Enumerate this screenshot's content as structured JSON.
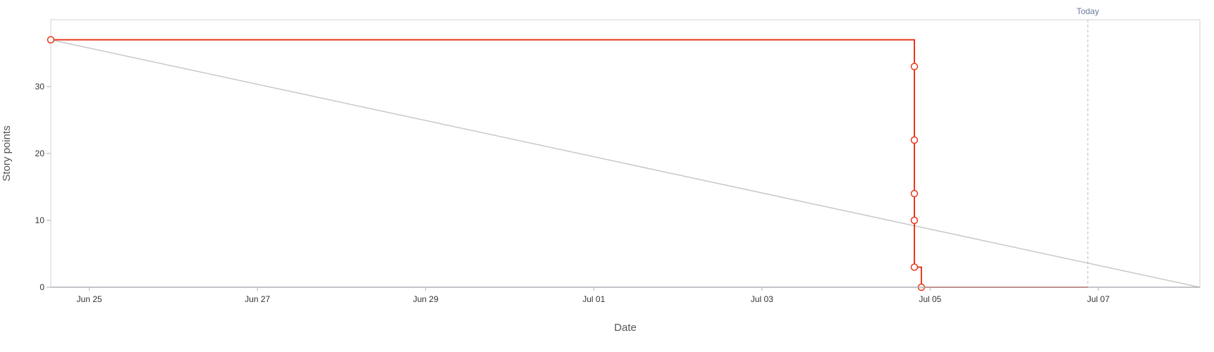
{
  "chart_data": {
    "type": "line",
    "xlabel": "Date",
    "ylabel": "Story points",
    "x_range": [
      "2024-06-24 13:00",
      "2024-07-08 05:00"
    ],
    "ylim": [
      0,
      40
    ],
    "y_ticks": [
      0,
      10,
      20,
      30
    ],
    "x_ticks": [
      {
        "label": "Jun 25",
        "date": "2024-06-25"
      },
      {
        "label": "Jun 27",
        "date": "2024-06-27"
      },
      {
        "label": "Jun 29",
        "date": "2024-06-29"
      },
      {
        "label": "Jul 01",
        "date": "2024-07-01"
      },
      {
        "label": "Jul 03",
        "date": "2024-07-03"
      },
      {
        "label": "Jul 05",
        "date": "2024-07-05"
      },
      {
        "label": "Jul 07",
        "date": "2024-07-07"
      }
    ],
    "grid": false,
    "today": {
      "label": "Today",
      "date": "2024-07-06 21:00"
    },
    "colors": {
      "actual": "#e8381c",
      "guideline": "#c8c8c8",
      "today": "#b8b8c8",
      "frame": "#d0d0d8"
    },
    "series": [
      {
        "step": true,
        "markers": true,
        "points": [
          {
            "date": "2024-06-24 13:00",
            "value": 37,
            "marker": true
          },
          {
            "date": "2024-07-04 19:30",
            "value": 33,
            "marker": true
          },
          {
            "date": "2024-07-04 19:30",
            "value": 22,
            "marker": true
          },
          {
            "date": "2024-07-04 19:30",
            "value": 14,
            "marker": true
          },
          {
            "date": "2024-07-04 19:30",
            "value": 10,
            "marker": true
          },
          {
            "date": "2024-07-04 19:30",
            "value": 3,
            "marker": true
          },
          {
            "date": "2024-07-04 21:30",
            "value": 0,
            "marker": true
          },
          {
            "date": "2024-07-06 21:00",
            "value": 0,
            "marker": false
          }
        ]
      },
      {
        "step": false,
        "markers": false,
        "points": [
          {
            "date": "2024-06-24 13:00",
            "value": 37
          },
          {
            "date": "2024-07-08 05:00",
            "value": 0
          }
        ]
      }
    ]
  }
}
